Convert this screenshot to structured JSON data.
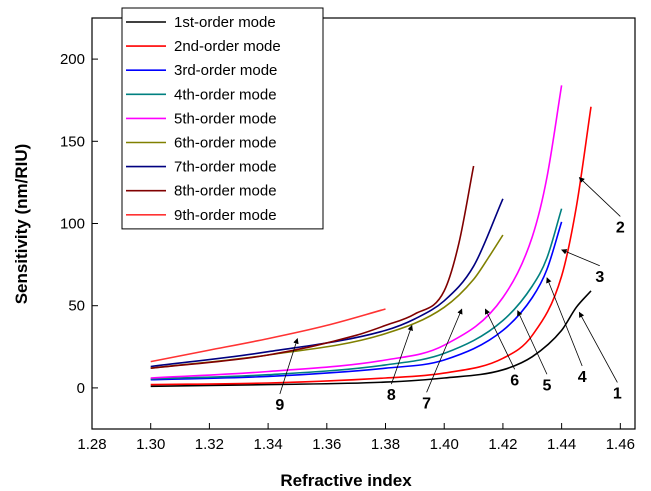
{
  "chart_data": {
    "type": "line",
    "xlabel": "Refractive index",
    "ylabel": "Sensitivity (nm/RIU)",
    "xlim": [
      1.28,
      1.465
    ],
    "ylim": [
      -25,
      225
    ],
    "xticks": [
      1.28,
      1.3,
      1.32,
      1.34,
      1.36,
      1.38,
      1.4,
      1.42,
      1.44,
      1.46
    ],
    "xtick_labels": [
      "1.28",
      "1.30",
      "1.32",
      "1.34",
      "1.36",
      "1.38",
      "1.40",
      "1.42",
      "1.44",
      "1.46"
    ],
    "yticks": [
      0,
      50,
      100,
      150,
      200
    ],
    "ytick_labels": [
      "0",
      "50",
      "100",
      "150",
      "200"
    ],
    "grid": false,
    "legend_position": "top-left",
    "series": [
      {
        "name": "1st-order mode",
        "color": "#000000",
        "x": [
          1.3,
          1.34,
          1.38,
          1.4,
          1.42,
          1.43,
          1.44,
          1.445,
          1.45
        ],
        "y": [
          1,
          2,
          3.5,
          6,
          11,
          19,
          35,
          49,
          59
        ]
      },
      {
        "name": "2nd-order mode",
        "color": "#ff0000",
        "x": [
          1.3,
          1.34,
          1.38,
          1.4,
          1.42,
          1.43,
          1.44,
          1.445,
          1.45
        ],
        "y": [
          2,
          3,
          6,
          9,
          18,
          32,
          68,
          110,
          171
        ]
      },
      {
        "name": "3rd-order mode",
        "color": "#0000ff",
        "x": [
          1.3,
          1.34,
          1.38,
          1.4,
          1.42,
          1.43,
          1.435,
          1.44
        ],
        "y": [
          5,
          7,
          12,
          17,
          35,
          55,
          72,
          101
        ]
      },
      {
        "name": "4th-order mode",
        "color": "#008080",
        "x": [
          1.3,
          1.34,
          1.38,
          1.4,
          1.42,
          1.43,
          1.435,
          1.44
        ],
        "y": [
          5.5,
          8,
          14,
          21,
          41,
          62,
          79,
          109
        ]
      },
      {
        "name": "5th-order mode",
        "color": "#ff00ff",
        "x": [
          1.3,
          1.34,
          1.38,
          1.4,
          1.42,
          1.43,
          1.435,
          1.44
        ],
        "y": [
          6,
          10,
          17,
          26,
          55,
          92,
          128,
          184
        ]
      },
      {
        "name": "6th-order mode",
        "color": "#808000",
        "x": [
          1.3,
          1.34,
          1.38,
          1.4,
          1.41,
          1.415,
          1.42
        ],
        "y": [
          12,
          20,
          33,
          49,
          66,
          79,
          93
        ]
      },
      {
        "name": "7th-order mode",
        "color": "#000080",
        "x": [
          1.3,
          1.34,
          1.38,
          1.39,
          1.4,
          1.41,
          1.42
        ],
        "y": [
          13,
          22,
          35,
          42,
          53,
          74,
          115
        ]
      },
      {
        "name": "8th-order mode",
        "color": "#800000",
        "x": [
          1.3,
          1.34,
          1.37,
          1.38,
          1.39,
          1.4,
          1.405,
          1.41
        ],
        "y": [
          12,
          20,
          32,
          38,
          45,
          59,
          88,
          135
        ]
      },
      {
        "name": "9th-order mode",
        "color": "#ff3333",
        "x": [
          1.3,
          1.32,
          1.34,
          1.36,
          1.38
        ],
        "y": [
          16,
          23,
          30,
          38,
          48
        ]
      }
    ],
    "annotations": [
      {
        "text": "1",
        "tip": [
          1.446,
          46
        ],
        "label_at": [
          1.459,
          -4
        ]
      },
      {
        "text": "2",
        "tip": [
          1.446,
          128
        ],
        "label_at": [
          1.46,
          97
        ]
      },
      {
        "text": "3",
        "tip": [
          1.44,
          84
        ],
        "label_at": [
          1.453,
          67
        ]
      },
      {
        "text": "4",
        "tip": [
          1.435,
          67
        ],
        "label_at": [
          1.447,
          6
        ]
      },
      {
        "text": "5",
        "tip": [
          1.425,
          47
        ],
        "label_at": [
          1.435,
          1
        ]
      },
      {
        "text": "6",
        "tip": [
          1.414,
          48
        ],
        "label_at": [
          1.424,
          4
        ]
      },
      {
        "text": "7",
        "tip": [
          1.406,
          48
        ],
        "label_at": [
          1.394,
          -10
        ]
      },
      {
        "text": "8",
        "tip": [
          1.389,
          38
        ],
        "label_at": [
          1.382,
          -5
        ]
      },
      {
        "text": "9",
        "tip": [
          1.35,
          30
        ],
        "label_at": [
          1.344,
          -11
        ]
      }
    ]
  }
}
